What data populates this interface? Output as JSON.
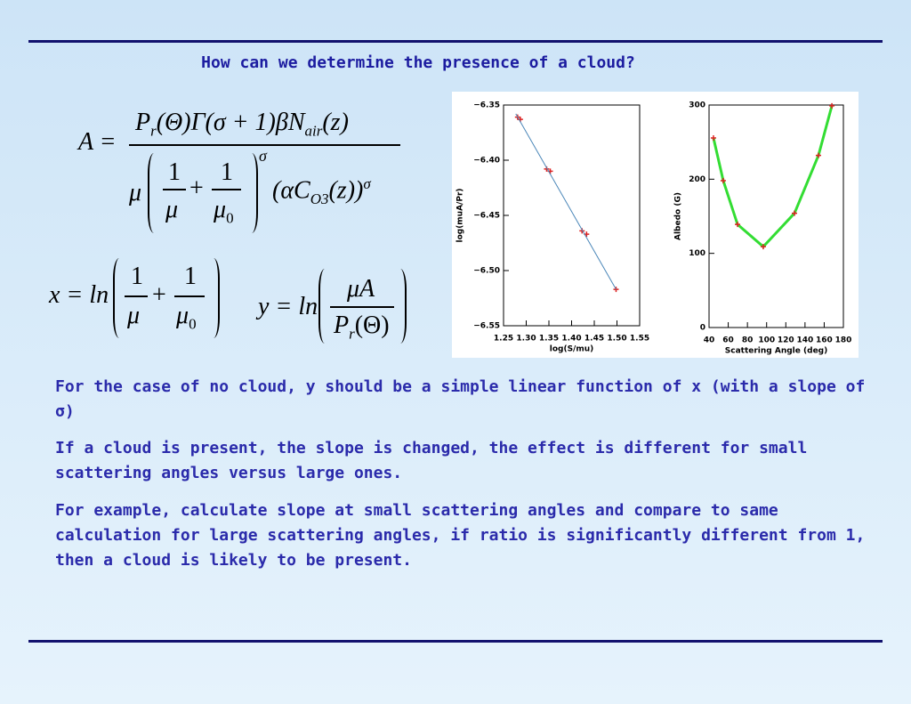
{
  "title": "How can we determine the presence of a cloud?",
  "eq_a": {
    "lhs": "A =",
    "num_p": "P",
    "num_r": "r",
    "num_mid": "(Θ)Γ(σ + 1)βN",
    "num_air": "air",
    "num_z": "(z)",
    "den_mu": "μ",
    "f1_num": "1",
    "f1_den": "μ",
    "plus": "+",
    "f2_num": "1",
    "f2_den": "μ",
    "f2_sub": "0",
    "exp1": "σ",
    "den_ac": "(αC",
    "den_o3": "O3",
    "den_z": "(z))",
    "exp2": "σ"
  },
  "eq_x": {
    "lhs": "x = ln",
    "f1_num": "1",
    "f1_den": "μ",
    "plus": "+",
    "f2_num": "1",
    "f2_den": "μ",
    "f2_sub": "0"
  },
  "eq_y": {
    "lhs": "y = ln",
    "num": "μA",
    "den_p": "P",
    "den_r": "r",
    "den_theta": "(Θ)"
  },
  "paragraphs": [
    "For the case of no cloud, y should be a simple linear function of x (with a slope of σ)",
    "If a cloud is present, the slope is changed, the effect is different for small scattering angles versus large ones.",
    "For example, calculate slope at small scattering angles and compare to same calculation for large scattering angles, if ratio is significantly different from 1, then a cloud is likely to be present."
  ],
  "chart_data": [
    {
      "type": "scatter",
      "x_label": "log(S/mu)",
      "y_label": "log(muA/Pr)",
      "xlim": [
        1.25,
        1.55
      ],
      "xticks": [
        1.25,
        {
          "value": 1.3,
          "label": "1.30"
        },
        1.35,
        {
          "value": 1.4,
          "label": "1.40"
        },
        1.45,
        {
          "value": 1.5,
          "label": "1.50"
        },
        1.55
      ],
      "ylim": [
        -6.55,
        -6.35
      ],
      "yticks": [
        {
          "value": -6.55,
          "label": "−6.55"
        },
        {
          "value": -6.5,
          "label": "−6.50"
        },
        {
          "value": -6.45,
          "label": "−6.45"
        },
        {
          "value": -6.4,
          "label": "−6.40"
        },
        {
          "value": -6.35,
          "label": "−6.35"
        }
      ],
      "series": [
        {
          "color": "#dd2222",
          "marker": "cross",
          "line": false,
          "x": [
            1.281,
            1.287,
            1.345,
            1.353,
            1.423,
            1.433,
            1.498
          ],
          "values": [
            -6.361,
            -6.363,
            -6.408,
            -6.41,
            -6.464,
            -6.467,
            -6.517
          ]
        },
        {
          "color": "#4a86b8",
          "marker": null,
          "line": true,
          "x": [
            1.277,
            1.498
          ],
          "values": [
            -6.358,
            -6.517
          ]
        }
      ]
    },
    {
      "type": "line",
      "x_label": "Scattering Angle (deg)",
      "y_label": "Albedo (G)",
      "xlim": [
        40,
        180
      ],
      "xticks": [
        40,
        60,
        80,
        100,
        120,
        140,
        160,
        180
      ],
      "ylim": [
        0,
        300
      ],
      "yticks": [
        0,
        100,
        200,
        300
      ],
      "series": [
        {
          "color": "#33dd33",
          "marker": "cross",
          "marker_color": "#dd2222",
          "line": true,
          "x": [
            44.6,
            54.8,
            69.7,
            96.5,
            129,
            154,
            168
          ],
          "values": [
            255.6,
            198,
            139,
            109,
            154,
            232,
            299
          ]
        }
      ]
    }
  ]
}
